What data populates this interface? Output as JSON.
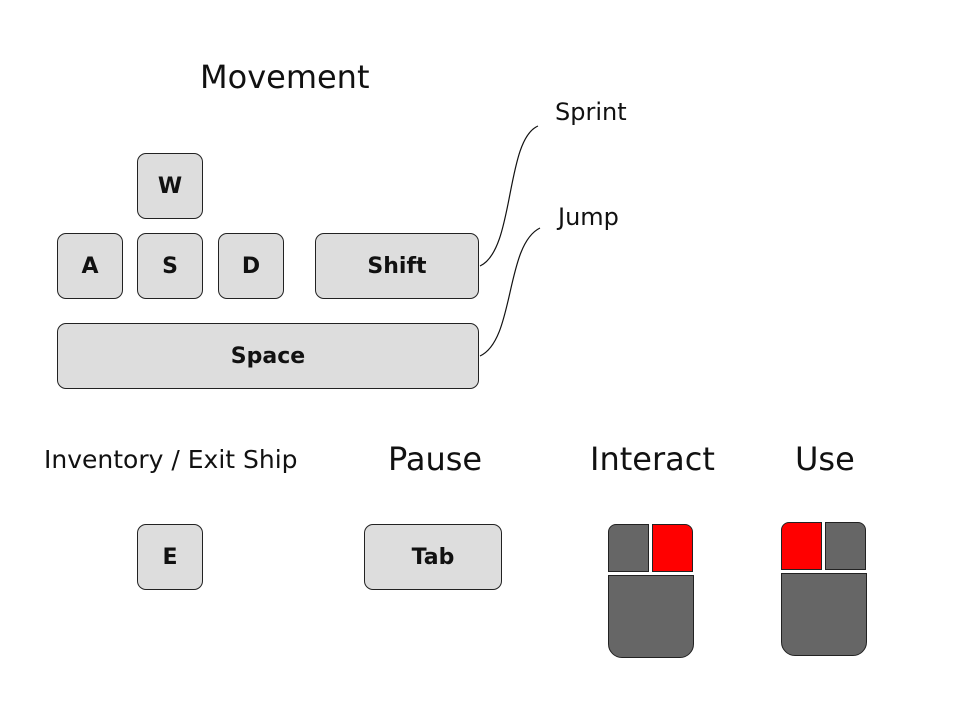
{
  "colors": {
    "key_fill": "#dddddd",
    "outline": "#222222",
    "mouse_body": "#666666",
    "mouse_highlight": "#ff0000"
  },
  "movement": {
    "heading": "Movement",
    "keys": {
      "w": "W",
      "a": "A",
      "s": "S",
      "d": "D",
      "shift": "Shift",
      "space": "Space"
    },
    "notes": {
      "sprint": "Sprint",
      "jump": "Jump"
    }
  },
  "inventory": {
    "heading": "Inventory / Exit Ship",
    "key": "E"
  },
  "pause": {
    "heading": "Pause",
    "key": "Tab"
  },
  "interact": {
    "heading": "Interact",
    "highlighted_button": "right"
  },
  "use": {
    "heading": "Use",
    "highlighted_button": "left"
  }
}
